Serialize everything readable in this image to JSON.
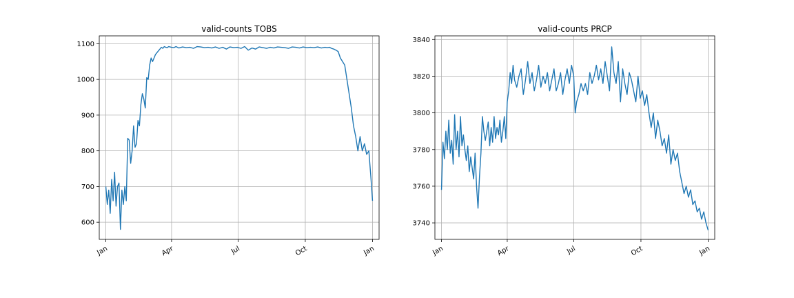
{
  "chart_data": [
    {
      "type": "line",
      "title": "valid-counts TOBS",
      "xlabel": "",
      "ylabel": "",
      "x_unit": "day-of-year",
      "xlim": [
        -9,
        374
      ],
      "ylim": [
        552,
        1122
      ],
      "x_ticks": [
        {
          "label": "Jan",
          "value": 0
        },
        {
          "label": "Apr",
          "value": 90
        },
        {
          "label": "Jul",
          "value": 181
        },
        {
          "label": "Oct",
          "value": 273
        },
        {
          "label": "Jan",
          "value": 365
        }
      ],
      "y_ticks": [
        600,
        700,
        800,
        900,
        1000,
        1100
      ],
      "grid": true,
      "color": "#1f77b4",
      "series": [
        {
          "x": [
            0,
            2,
            4,
            6,
            8,
            10,
            12,
            14,
            16,
            18,
            20,
            22,
            24,
            26,
            28,
            30,
            32,
            34,
            36,
            38,
            40,
            42,
            44,
            46,
            48,
            50,
            52,
            54,
            56,
            58,
            60,
            62,
            64,
            66,
            68,
            70,
            72,
            74,
            76,
            78,
            80,
            82,
            84,
            86,
            88,
            90,
            93,
            96,
            100,
            105,
            110,
            115,
            120,
            125,
            130,
            135,
            140,
            145,
            150,
            155,
            160,
            165,
            170,
            175,
            180,
            185,
            190,
            195,
            200,
            205,
            210,
            215,
            220,
            225,
            230,
            235,
            240,
            245,
            250,
            255,
            260,
            265,
            270,
            275,
            280,
            285,
            290,
            295,
            300,
            303,
            306,
            309,
            312,
            315,
            318,
            321,
            324,
            327,
            330,
            333,
            336,
            339,
            342,
            345,
            348,
            351,
            354,
            357,
            360,
            363,
            365
          ],
          "y": [
            700,
            650,
            690,
            625,
            720,
            660,
            740,
            645,
            700,
            710,
            580,
            690,
            650,
            700,
            660,
            835,
            830,
            765,
            800,
            870,
            810,
            820,
            885,
            870,
            930,
            960,
            945,
            920,
            1005,
            1000,
            1040,
            1060,
            1050,
            1060,
            1070,
            1075,
            1080,
            1085,
            1090,
            1087,
            1092,
            1090,
            1089,
            1092,
            1091,
            1090,
            1089,
            1092,
            1088,
            1091,
            1089,
            1090,
            1087,
            1092,
            1091,
            1089,
            1090,
            1088,
            1091,
            1087,
            1090,
            1085,
            1091,
            1089,
            1090,
            1087,
            1092,
            1082,
            1088,
            1085,
            1091,
            1089,
            1087,
            1090,
            1088,
            1091,
            1090,
            1089,
            1087,
            1091,
            1090,
            1088,
            1091,
            1089,
            1090,
            1089,
            1091,
            1088,
            1090,
            1089,
            1090,
            1087,
            1085,
            1082,
            1078,
            1060,
            1050,
            1040,
            1000,
            960,
            920,
            870,
            840,
            800,
            840,
            800,
            820,
            790,
            800,
            720,
            660
          ]
        }
      ]
    },
    {
      "type": "line",
      "title": "valid-counts PRCP",
      "xlabel": "",
      "ylabel": "",
      "x_unit": "day-of-year",
      "xlim": [
        -9,
        374
      ],
      "ylim": [
        3731,
        3842
      ],
      "x_ticks": [
        {
          "label": "Jan",
          "value": 0
        },
        {
          "label": "Apr",
          "value": 90
        },
        {
          "label": "Jul",
          "value": 181
        },
        {
          "label": "Oct",
          "value": 273
        },
        {
          "label": "Jan",
          "value": 365
        }
      ],
      "y_ticks": [
        3740,
        3760,
        3780,
        3800,
        3820,
        3840
      ],
      "grid": true,
      "color": "#1f77b4",
      "series": [
        {
          "x": [
            0,
            2,
            4,
            6,
            8,
            10,
            12,
            14,
            16,
            18,
            20,
            22,
            24,
            26,
            28,
            30,
            32,
            34,
            36,
            38,
            40,
            42,
            44,
            46,
            48,
            50,
            52,
            54,
            56,
            58,
            60,
            62,
            64,
            66,
            68,
            70,
            72,
            74,
            76,
            78,
            80,
            82,
            84,
            86,
            88,
            90,
            92,
            94,
            96,
            98,
            100,
            103,
            106,
            109,
            112,
            115,
            118,
            121,
            124,
            127,
            130,
            133,
            136,
            139,
            142,
            145,
            148,
            151,
            154,
            157,
            160,
            163,
            166,
            169,
            172,
            175,
            178,
            181,
            183,
            185,
            188,
            191,
            194,
            197,
            200,
            203,
            206,
            209,
            212,
            215,
            218,
            221,
            224,
            227,
            230,
            233,
            236,
            239,
            242,
            245,
            248,
            251,
            254,
            257,
            260,
            263,
            266,
            269,
            272,
            275,
            278,
            281,
            284,
            287,
            290,
            293,
            296,
            299,
            302,
            305,
            308,
            311,
            314,
            317,
            320,
            323,
            326,
            329,
            332,
            335,
            338,
            341,
            344,
            347,
            350,
            353,
            356,
            359,
            362,
            365
          ],
          "y": [
            3758,
            3784,
            3775,
            3790,
            3780,
            3796,
            3778,
            3785,
            3772,
            3799,
            3780,
            3790,
            3776,
            3798,
            3782,
            3788,
            3780,
            3774,
            3782,
            3768,
            3776,
            3770,
            3764,
            3778,
            3760,
            3748,
            3765,
            3778,
            3798,
            3790,
            3785,
            3790,
            3795,
            3782,
            3792,
            3784,
            3798,
            3786,
            3792,
            3788,
            3796,
            3784,
            3790,
            3798,
            3786,
            3806,
            3812,
            3822,
            3816,
            3826,
            3818,
            3814,
            3820,
            3824,
            3810,
            3818,
            3828,
            3816,
            3822,
            3812,
            3818,
            3826,
            3814,
            3820,
            3816,
            3822,
            3812,
            3818,
            3824,
            3812,
            3816,
            3822,
            3810,
            3818,
            3824,
            3816,
            3826,
            3820,
            3800,
            3806,
            3810,
            3816,
            3812,
            3816,
            3810,
            3822,
            3816,
            3820,
            3826,
            3818,
            3824,
            3816,
            3828,
            3820,
            3812,
            3836,
            3822,
            3816,
            3828,
            3806,
            3824,
            3816,
            3810,
            3822,
            3818,
            3812,
            3806,
            3820,
            3808,
            3812,
            3804,
            3810,
            3800,
            3792,
            3800,
            3786,
            3796,
            3790,
            3782,
            3786,
            3778,
            3788,
            3772,
            3780,
            3774,
            3778,
            3768,
            3762,
            3756,
            3760,
            3754,
            3758,
            3750,
            3752,
            3746,
            3748,
            3742,
            3746,
            3740,
            3736
          ]
        }
      ]
    }
  ]
}
